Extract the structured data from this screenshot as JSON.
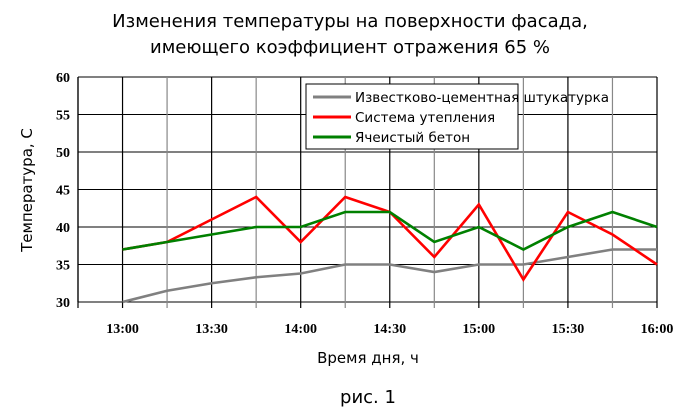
{
  "chart_data": {
    "type": "line",
    "title": [
      "Изменения температуры на поверхности фасада,",
      "имеющего коэффициент отражения 65 %"
    ],
    "xlabel": "Время дня, ч",
    "ylabel": "Температура, С",
    "caption": "рис. 1",
    "x": [
      "13:00",
      "13:15",
      "13:30",
      "13:45",
      "14:00",
      "14:15",
      "14:30",
      "14:45",
      "15:00",
      "15:15",
      "15:30",
      "15:45",
      "16:00"
    ],
    "xtick_labels": [
      "13:00",
      "13:30",
      "14:00",
      "14:30",
      "15:00",
      "15:30",
      "16:00"
    ],
    "ylim": [
      30,
      60
    ],
    "yticks": [
      30,
      35,
      40,
      45,
      50,
      55,
      60
    ],
    "grid": true,
    "legend": "top-right",
    "series": [
      {
        "name": "Известково-цементная штукатурка",
        "color": "#808080",
        "values": [
          30,
          31.5,
          32.5,
          33.3,
          33.8,
          35,
          35,
          34,
          35,
          35,
          36,
          37,
          37
        ]
      },
      {
        "name": "Система утепления",
        "color": "#ff0000",
        "values": [
          37,
          38,
          41,
          44,
          38,
          44,
          42,
          36,
          43,
          33,
          42,
          39,
          35
        ]
      },
      {
        "name": "Ячеистый бетон",
        "color": "#008000",
        "values": [
          37,
          38,
          39,
          40,
          40,
          42,
          42,
          38,
          40,
          37,
          40,
          42,
          40
        ]
      }
    ]
  }
}
